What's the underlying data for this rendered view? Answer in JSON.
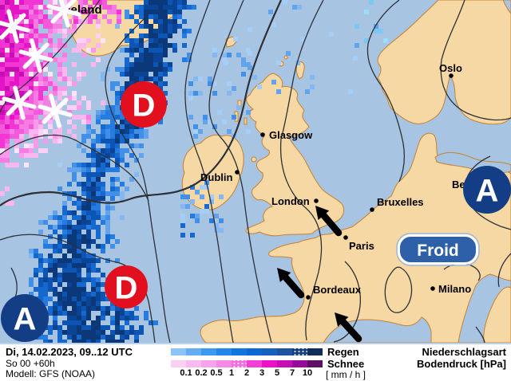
{
  "map": {
    "region_label": "Iceland",
    "cities": [
      {
        "name": "Oslo"
      },
      {
        "name": "Glasgow"
      },
      {
        "name": "Dublin"
      },
      {
        "name": "London"
      },
      {
        "name": "Bruxelles"
      },
      {
        "name": "Paris"
      },
      {
        "name": "Bordeaux"
      },
      {
        "name": "Milano"
      },
      {
        "name": "Berlin"
      }
    ],
    "pressure_centers": [
      {
        "letter": "D",
        "type": "low"
      },
      {
        "letter": "D",
        "type": "low"
      },
      {
        "letter": "A",
        "type": "high"
      },
      {
        "letter": "A",
        "type": "high"
      }
    ],
    "cold_air_label": "Froid"
  },
  "legend": {
    "rain_label": "Regen",
    "snow_label": "Schnee",
    "unit": "[ mm / h ]",
    "ticks": [
      "0.1",
      "0.2",
      "0.5",
      "1",
      "2",
      "3",
      "5",
      "7",
      "10"
    ],
    "rain_colors": [
      "#8CC3F8",
      "#64ADF4",
      "#3D98EF",
      "#2387EA",
      "#0F76DE",
      "#0D68D0",
      "#1660BE",
      "#1C53A2",
      "#173F7E",
      "#0F2E5A"
    ],
    "snow_colors": [
      "#FBD0F4",
      "#F9BAF0",
      "#F7A3EB",
      "#F58AE6",
      "#F46CDE",
      "#F23ED5",
      "#EC10C8",
      "#C70DB4",
      "#970B9B",
      "#5C0F63"
    ],
    "type_title": "Niederschlagsart",
    "pressure_title": "Bodendruck [hPa]"
  },
  "footer": {
    "datetime": "Di, 14.02.2023, 09..12 UTC",
    "run": "So 00 +60h",
    "model": "Modell: GFS (NOAA)"
  },
  "colors": {
    "sea": "#A7C5E3",
    "land": "#F6D8A4",
    "coast": "#C8812E",
    "isobar": "#2E3036",
    "low_red": "#E2101E",
    "high_blue": "#133E86",
    "froid_fill": "#2E5FA9",
    "froid_ring": "#9DB9DC",
    "arrow": "#000000",
    "snowflake": "#FFFFFF",
    "rain_palette": [
      "#A6CDF6",
      "#85B7F1",
      "#62A3EC",
      "#418FE7",
      "#257CDE",
      "#1468CE",
      "#0D55B4",
      "#0B4494",
      "#0A3878"
    ],
    "snow_palette": [
      "#FBD2F5",
      "#F9B6EF",
      "#F79AEA",
      "#F57CE3",
      "#F35ADB",
      "#F136D3",
      "#E415C7",
      "#C60FB3",
      "#A00DA2"
    ],
    "cyan_palette": [
      "#9BDDF8",
      "#7CC8F2",
      "#62A3EC"
    ]
  }
}
